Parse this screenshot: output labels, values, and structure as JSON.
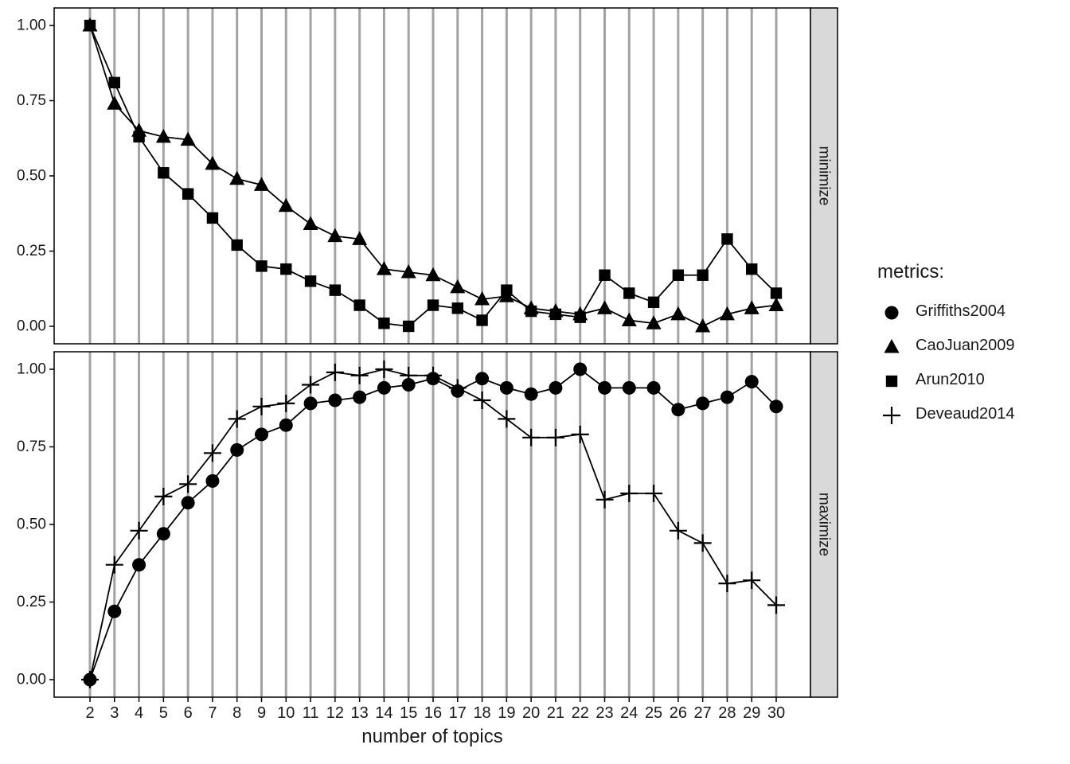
{
  "chart_data": {
    "type": "line",
    "title": "",
    "xlabel": "number of topics",
    "ylabel": "",
    "grid": "vertical-major-only",
    "legend_position": "right",
    "x": [
      2,
      3,
      4,
      5,
      6,
      7,
      8,
      9,
      10,
      11,
      12,
      13,
      14,
      15,
      16,
      17,
      18,
      19,
      20,
      21,
      22,
      23,
      24,
      25,
      26,
      27,
      28,
      29,
      30
    ],
    "yticks": {
      "values": [
        0,
        0.25,
        0.5,
        0.75,
        1.0
      ],
      "labels": [
        "0.00",
        "0.25",
        "0.50",
        "0.75",
        "1.00"
      ]
    },
    "panels": [
      {
        "label": "minimize",
        "ylim": [
          0,
          1
        ],
        "series": [
          {
            "name": "CaoJuan2009",
            "marker": "triangle",
            "values": [
              1.0,
              0.74,
              0.65,
              0.63,
              0.62,
              0.54,
              0.49,
              0.47,
              0.4,
              0.34,
              0.3,
              0.29,
              0.19,
              0.18,
              0.17,
              0.13,
              0.09,
              0.1,
              0.06,
              0.05,
              0.04,
              0.06,
              0.02,
              0.01,
              0.04,
              0.0,
              0.04,
              0.06,
              0.07
            ]
          },
          {
            "name": "Arun2010",
            "marker": "square",
            "values": [
              1.0,
              0.81,
              0.63,
              0.51,
              0.44,
              0.36,
              0.27,
              0.2,
              0.19,
              0.15,
              0.12,
              0.07,
              0.01,
              0.0,
              0.07,
              0.06,
              0.02,
              0.12,
              0.05,
              0.04,
              0.03,
              0.17,
              0.11,
              0.08,
              0.17,
              0.17,
              0.29,
              0.19,
              0.11
            ]
          }
        ]
      },
      {
        "label": "maximize",
        "ylim": [
          0,
          1
        ],
        "series": [
          {
            "name": "Griffiths2004",
            "marker": "circle",
            "values": [
              0.0,
              0.22,
              0.37,
              0.47,
              0.57,
              0.64,
              0.74,
              0.79,
              0.82,
              0.89,
              0.9,
              0.91,
              0.94,
              0.95,
              0.97,
              0.93,
              0.97,
              0.94,
              0.92,
              0.94,
              1.0,
              0.94,
              0.94,
              0.94,
              0.87,
              0.89,
              0.91,
              0.96,
              0.88
            ]
          },
          {
            "name": "Deveaud2014",
            "marker": "plus",
            "values": [
              0.0,
              0.37,
              0.48,
              0.59,
              0.63,
              0.73,
              0.84,
              0.88,
              0.89,
              0.95,
              0.99,
              0.98,
              1.0,
              0.98,
              0.98,
              0.94,
              0.9,
              0.84,
              0.78,
              0.78,
              0.79,
              0.58,
              0.6,
              0.6,
              0.48,
              0.44,
              0.31,
              0.32,
              0.24
            ]
          }
        ]
      }
    ],
    "legend": {
      "title": "metrics:",
      "entries": [
        {
          "label": "Griffiths2004",
          "marker": "circle"
        },
        {
          "label": "CaoJuan2009",
          "marker": "triangle"
        },
        {
          "label": "Arun2010",
          "marker": "square"
        },
        {
          "label": "Deveaud2014",
          "marker": "plus"
        }
      ]
    },
    "colors": {
      "foreground": "#000000",
      "gridline": "#a3a3a3",
      "strip_bg": "#d9d9d9",
      "background": "#ffffff",
      "text": "#1a1a1a"
    }
  }
}
